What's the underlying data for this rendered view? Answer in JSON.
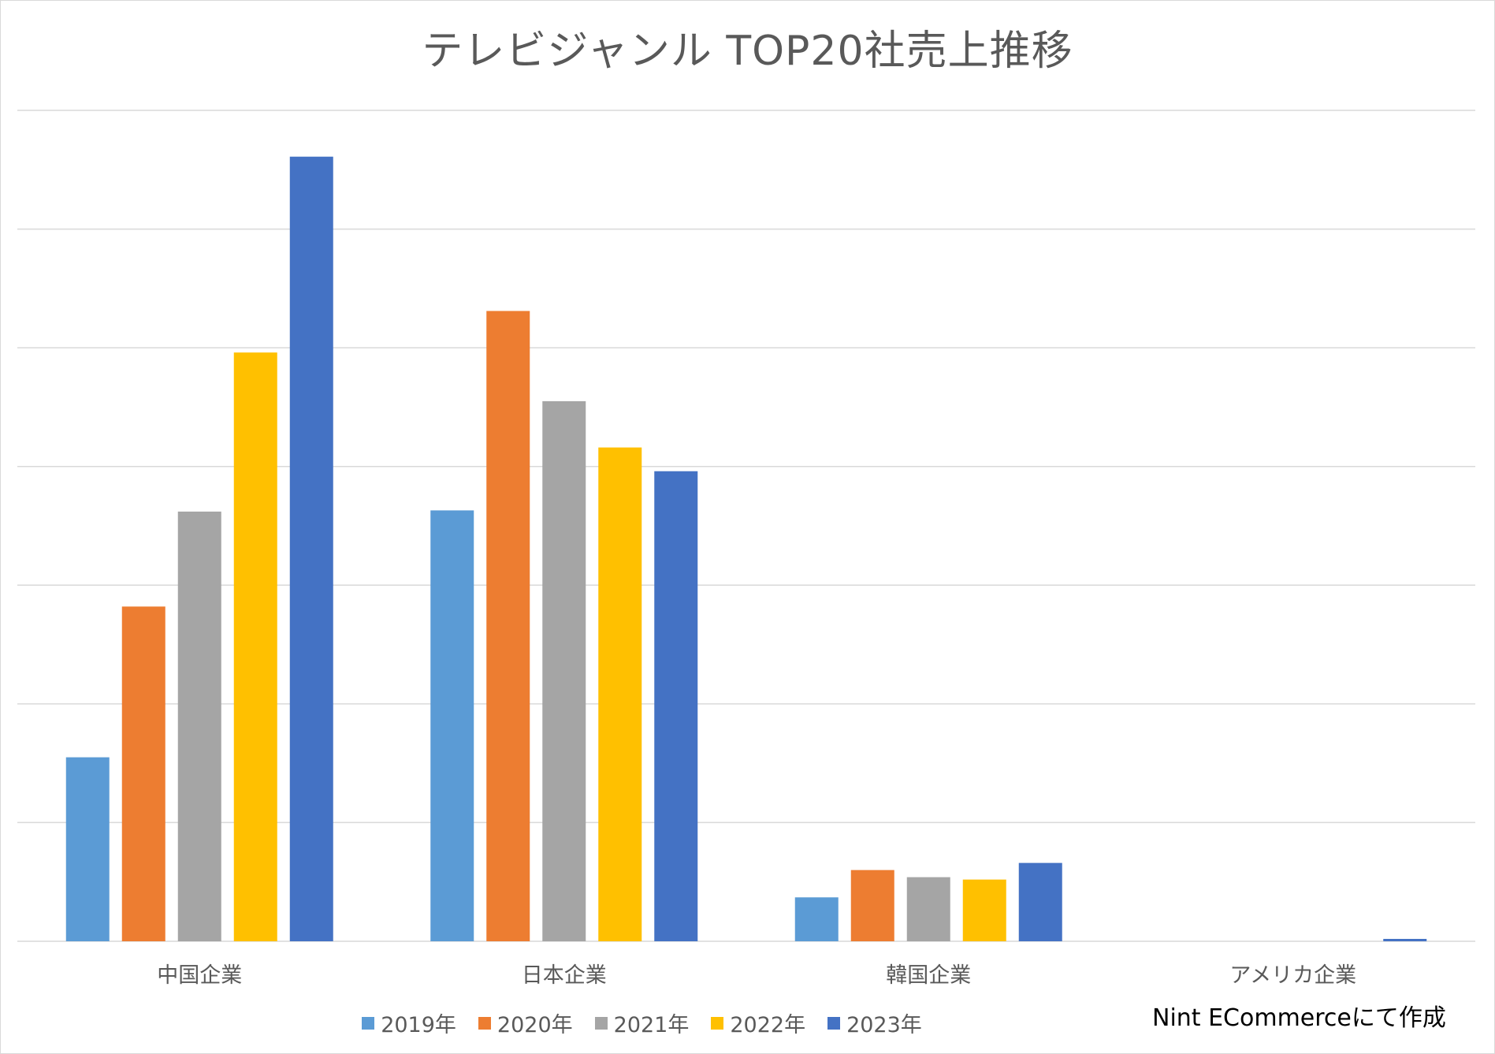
{
  "chart_data": {
    "type": "bar",
    "title": "テレビジャンル TOP20社売上推移",
    "xlabel": "",
    "ylabel": "",
    "categories": [
      "中国企業",
      "日本企業",
      "韓国企業",
      "アメリカ企業"
    ],
    "series": [
      {
        "name": "2019年",
        "color": "#5b9bd5",
        "values": [
          1.55,
          3.63,
          0.37,
          0
        ]
      },
      {
        "name": "2020年",
        "color": "#ed7d31",
        "values": [
          2.82,
          5.31,
          0.6,
          0
        ]
      },
      {
        "name": "2021年",
        "color": "#a5a5a5",
        "values": [
          3.62,
          4.55,
          0.54,
          0
        ]
      },
      {
        "name": "2022年",
        "color": "#ffc000",
        "values": [
          4.96,
          4.16,
          0.52,
          0
        ]
      },
      {
        "name": "2023年",
        "color": "#4472c4",
        "values": [
          6.61,
          3.96,
          0.66,
          0.02
        ]
      }
    ],
    "ylim": [
      0,
      7
    ],
    "y_axis_labels_shown": false,
    "grid": true,
    "legend_position": "bottom"
  },
  "credit": "Nint ECommerceにて作成"
}
